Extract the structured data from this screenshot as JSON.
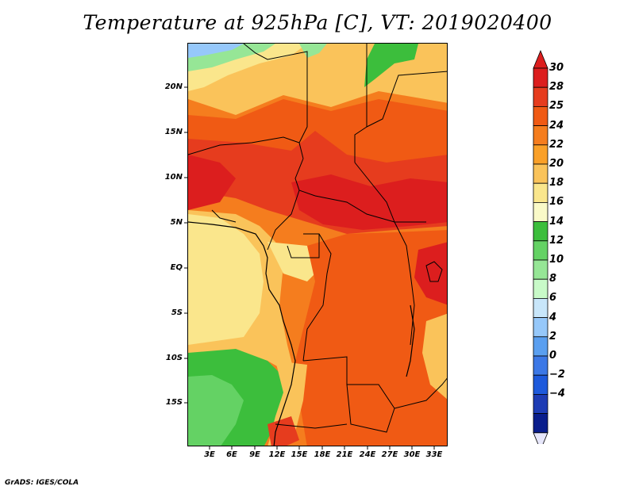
{
  "title": "Temperature at 925hPa [C], VT: 2019020400",
  "credit": "GrADS: IGES/COLA",
  "map": {
    "lon_range": [
      0,
      34.5
    ],
    "lat_range": [
      -20,
      24
    ],
    "lat_labels": [
      {
        "value": 20,
        "text": "20N"
      },
      {
        "value": 15,
        "text": "15N"
      },
      {
        "value": 10,
        "text": "10N"
      },
      {
        "value": 5,
        "text": "5N"
      },
      {
        "value": 0,
        "text": "EQ"
      },
      {
        "value": -5,
        "text": "5S"
      },
      {
        "value": -10,
        "text": "10S"
      },
      {
        "value": -15,
        "text": "15S"
      }
    ],
    "lon_labels": [
      {
        "value": 3,
        "text": "3E"
      },
      {
        "value": 6,
        "text": "6E"
      },
      {
        "value": 9,
        "text": "9E"
      },
      {
        "value": 12,
        "text": "12E"
      },
      {
        "value": 15,
        "text": "15E"
      },
      {
        "value": 18,
        "text": "18E"
      },
      {
        "value": 21,
        "text": "21E"
      },
      {
        "value": 24,
        "text": "24E"
      },
      {
        "value": 27,
        "text": "27E"
      },
      {
        "value": 30,
        "text": "30E"
      },
      {
        "value": 33,
        "text": "33E"
      }
    ]
  },
  "colorbar": {
    "labels": [
      "30",
      "28",
      "25",
      "24",
      "22",
      "20",
      "18",
      "16",
      "14",
      "12",
      "10",
      "8",
      "6",
      "4",
      "2",
      "0",
      "−2",
      "−4"
    ],
    "colors": [
      "#dc1e1e",
      "#e63c1e",
      "#f05a14",
      "#f57d1e",
      "#faa028",
      "#fac35a",
      "#fae68c",
      "#fafac8",
      "#3cbe3c",
      "#64d264",
      "#96e696",
      "#c8fac8",
      "#c8e6fa",
      "#96c8fa",
      "#5a9ff0",
      "#3c78e6",
      "#1e5adc",
      "#1e3cb4",
      "#0a1e8c"
    ],
    "top_color": "#dc1e1e",
    "bottom_color": "#e6e6fa"
  },
  "regions": [
    {
      "name": "sahara-north",
      "color": "#fac35a"
    },
    {
      "name": "sahel-hot",
      "color": "#f05a14"
    },
    {
      "name": "central-band",
      "color": "#dc1e1e"
    },
    {
      "name": "congo-basin",
      "color": "#f05a14"
    },
    {
      "name": "atlantic-coast",
      "color": "#fae68c"
    },
    {
      "name": "southwest-cool",
      "color": "#3cbe3c"
    },
    {
      "name": "north-cool",
      "color": "#96e696"
    }
  ]
}
